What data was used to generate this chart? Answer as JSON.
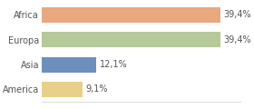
{
  "categories": [
    "America",
    "Asia",
    "Europa",
    "Africa"
  ],
  "values": [
    9.1,
    12.1,
    39.4,
    39.4
  ],
  "labels": [
    "9,1%",
    "12,1%",
    "39,4%",
    "39,4%"
  ],
  "bar_colors": [
    "#e8d08a",
    "#6e8fbc",
    "#b5c99a",
    "#e8a97e"
  ],
  "background_color": "#ffffff",
  "xlim": [
    0,
    44
  ],
  "bar_height": 0.62,
  "label_fontsize": 7,
  "tick_fontsize": 7
}
